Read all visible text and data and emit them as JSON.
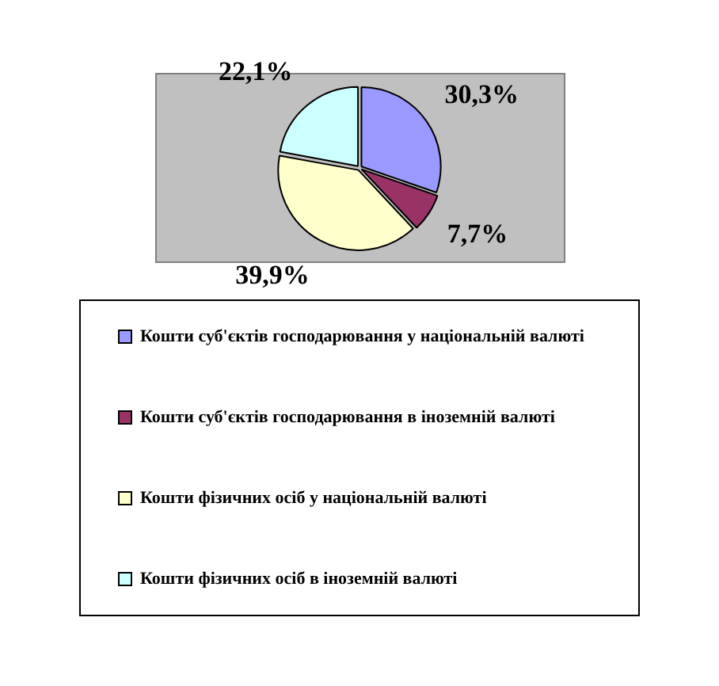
{
  "chart_data": {
    "type": "pie",
    "categories": [
      "Кошти суб'єктів господарювання у національній валюті",
      "Кошти суб'єктів господарювання в іноземній валюті",
      "Кошти фізичних осіб у національній валюті",
      "Кошти фізичних осіб в іноземній валюті"
    ],
    "values": [
      30.3,
      7.7,
      39.9,
      22.1
    ],
    "colors": [
      "#9999ff",
      "#993366",
      "#ffffcc",
      "#ccffff"
    ],
    "value_labels": [
      "30,3%",
      "7,7%",
      "39,9%",
      "22,1%"
    ],
    "legend": "bottom"
  }
}
